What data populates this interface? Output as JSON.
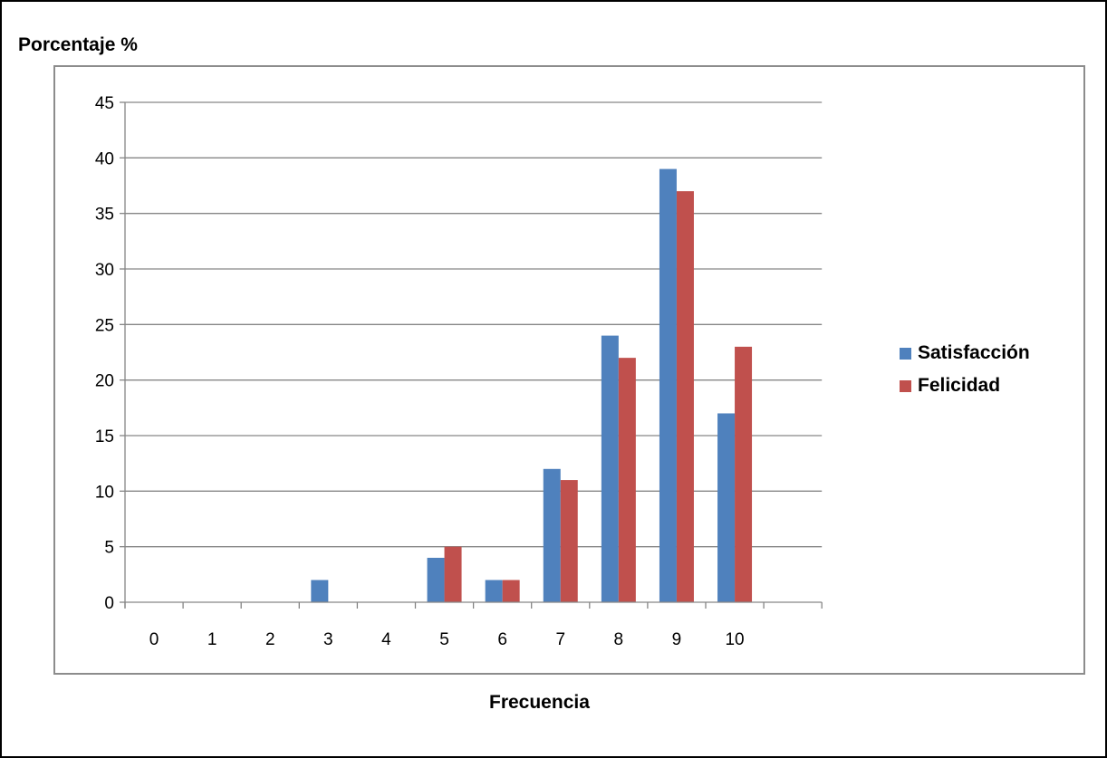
{
  "chart_data": {
    "type": "bar",
    "title": "",
    "ylabel": "Porcentaje %",
    "xlabel": "Frecuencia",
    "categories": [
      "0",
      "1",
      "2",
      "3",
      "4",
      "5",
      "6",
      "7",
      "8",
      "9",
      "10"
    ],
    "series": [
      {
        "name": "Satisfacción",
        "color": "#4f81bd",
        "values": [
          0,
          0,
          0,
          2,
          0,
          4,
          2,
          12,
          24,
          39,
          17
        ]
      },
      {
        "name": "Felicidad",
        "color": "#c0504d",
        "values": [
          0,
          0,
          0,
          0,
          0,
          5,
          2,
          11,
          22,
          37,
          23
        ]
      }
    ],
    "ylim": [
      0,
      45
    ],
    "yticks": [
      0,
      5,
      10,
      15,
      20,
      25,
      30,
      35,
      40,
      45
    ],
    "grid": true,
    "legend_position": "right"
  }
}
